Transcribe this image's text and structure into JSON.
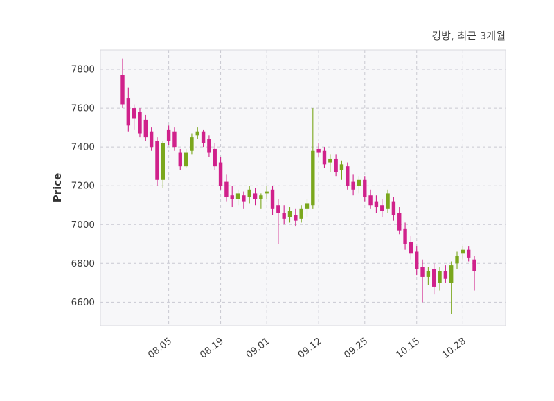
{
  "chart_data": {
    "type": "candlestick",
    "title": "경방, 최근 3개월",
    "xlabel": "",
    "ylabel": "Price",
    "ylim": [
      6480,
      7900
    ],
    "y_ticks": [
      6600,
      6800,
      7000,
      7200,
      7400,
      7600,
      7800
    ],
    "x_tick_labels": [
      "08.05",
      "08.19",
      "09.01",
      "09.12",
      "09.25",
      "10.15",
      "10.28"
    ],
    "x_tick_indices": [
      8,
      17,
      25,
      34,
      42,
      51,
      59
    ],
    "grid": "dashed",
    "legend": "none",
    "colors": {
      "up": "#7aa71d",
      "down": "#d0218b",
      "plot_bg": "#f7f7f9",
      "grid_color": "#c9c9d2",
      "text_color": "#3b3b3b",
      "figure_bg": "#ffffff"
    },
    "candles_ohlc": [
      [
        7770,
        7855,
        7600,
        7620
      ],
      [
        7650,
        7705,
        7480,
        7510
      ],
      [
        7600,
        7620,
        7490,
        7545
      ],
      [
        7580,
        7600,
        7450,
        7470
      ],
      [
        7540,
        7565,
        7430,
        7450
      ],
      [
        7480,
        7500,
        7380,
        7400
      ],
      [
        7430,
        7450,
        7200,
        7230
      ],
      [
        7230,
        7430,
        7190,
        7420
      ],
      [
        7490,
        7510,
        7410,
        7430
      ],
      [
        7480,
        7500,
        7380,
        7400
      ],
      [
        7370,
        7390,
        7280,
        7300
      ],
      [
        7300,
        7390,
        7290,
        7370
      ],
      [
        7380,
        7470,
        7360,
        7450
      ],
      [
        7460,
        7500,
        7440,
        7480
      ],
      [
        7480,
        7490,
        7400,
        7420
      ],
      [
        7440,
        7460,
        7350,
        7370
      ],
      [
        7390,
        7420,
        7280,
        7300
      ],
      [
        7320,
        7350,
        7180,
        7200
      ],
      [
        7220,
        7260,
        7120,
        7140
      ],
      [
        7150,
        7200,
        7090,
        7130
      ],
      [
        7130,
        7180,
        7100,
        7160
      ],
      [
        7150,
        7170,
        7080,
        7120
      ],
      [
        7140,
        7200,
        7110,
        7180
      ],
      [
        7160,
        7190,
        7100,
        7130
      ],
      [
        7130,
        7160,
        7080,
        7150
      ],
      [
        7160,
        7200,
        7130,
        7170
      ],
      [
        7180,
        7200,
        7050,
        7080
      ],
      [
        7100,
        7130,
        6900,
        7060
      ],
      [
        7060,
        7100,
        7000,
        7030
      ],
      [
        7040,
        7090,
        7010,
        7070
      ],
      [
        7050,
        7080,
        6990,
        7020
      ],
      [
        7030,
        7100,
        7010,
        7080
      ],
      [
        7080,
        7130,
        7040,
        7110
      ],
      [
        7100,
        7600,
        7080,
        7380
      ],
      [
        7390,
        7420,
        7350,
        7370
      ],
      [
        7380,
        7400,
        7290,
        7310
      ],
      [
        7320,
        7360,
        7270,
        7340
      ],
      [
        7340,
        7360,
        7250,
        7270
      ],
      [
        7280,
        7330,
        7230,
        7310
      ],
      [
        7300,
        7320,
        7180,
        7200
      ],
      [
        7220,
        7260,
        7150,
        7180
      ],
      [
        7200,
        7250,
        7160,
        7230
      ],
      [
        7230,
        7250,
        7120,
        7140
      ],
      [
        7150,
        7180,
        7080,
        7100
      ],
      [
        7120,
        7150,
        7060,
        7090
      ],
      [
        7100,
        7130,
        7040,
        7070
      ],
      [
        7080,
        7180,
        7060,
        7160
      ],
      [
        7120,
        7140,
        7020,
        7050
      ],
      [
        7060,
        7090,
        6950,
        6970
      ],
      [
        6980,
        7010,
        6870,
        6900
      ],
      [
        6910,
        6940,
        6820,
        6850
      ],
      [
        6860,
        6890,
        6740,
        6770
      ],
      [
        6780,
        6820,
        6600,
        6730
      ],
      [
        6730,
        6780,
        6690,
        6760
      ],
      [
        6770,
        6800,
        6640,
        6680
      ],
      [
        6700,
        6780,
        6660,
        6760
      ],
      [
        6760,
        6790,
        6700,
        6720
      ],
      [
        6700,
        6810,
        6540,
        6790
      ],
      [
        6800,
        6860,
        6770,
        6840
      ],
      [
        6850,
        6890,
        6820,
        6870
      ],
      [
        6870,
        6890,
        6810,
        6830
      ],
      [
        6820,
        6840,
        6660,
        6760
      ]
    ]
  }
}
